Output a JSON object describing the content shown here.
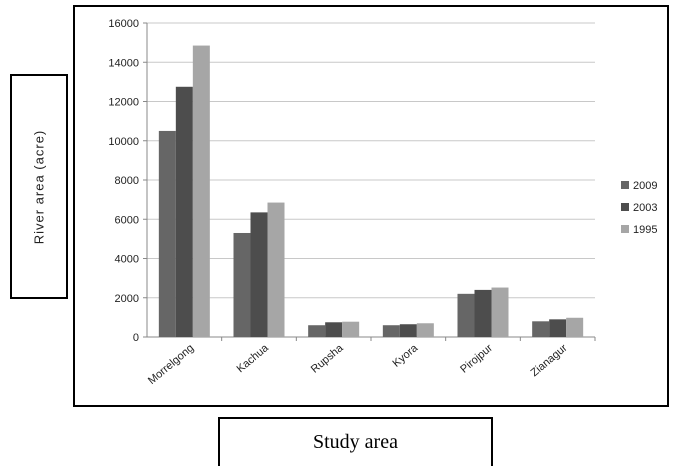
{
  "chart_data": {
    "type": "bar",
    "categories": [
      "Morrelgong",
      "Kachua",
      "Rupsha",
      "Kyora",
      "Pirojpur",
      "Zianagur"
    ],
    "series": [
      {
        "name": "2009",
        "values": [
          10500,
          5300,
          600,
          600,
          2200,
          800
        ],
        "color": "#666666"
      },
      {
        "name": "2003",
        "values": [
          12750,
          6350,
          750,
          650,
          2400,
          900
        ],
        "color": "#4d4d4d"
      },
      {
        "name": "1995",
        "values": [
          14850,
          6850,
          780,
          700,
          2520,
          980
        ],
        "color": "#a6a6a6"
      }
    ],
    "xlabel": "Study area",
    "ylabel": "River area (acre)",
    "ylim": [
      0,
      16000
    ],
    "yticks": [
      "0",
      "2000",
      "4000",
      "6000",
      "8000",
      "10000",
      "12000",
      "14000",
      "16000"
    ],
    "grid": true,
    "legend_position": "right"
  }
}
